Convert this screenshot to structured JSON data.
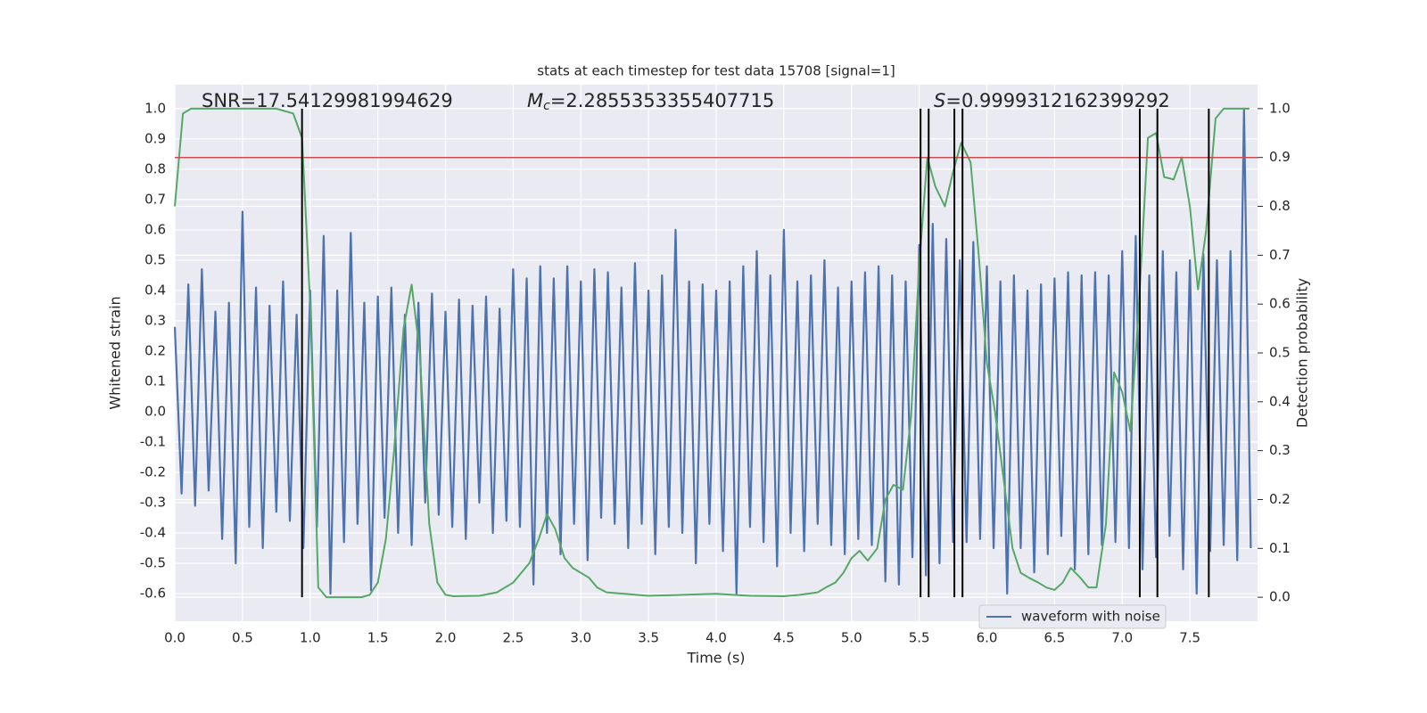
{
  "chart_data": {
    "type": "line",
    "title": "stats at each timestep for test data 15708 [signal=1]",
    "xlabel": "Time (s)",
    "ylabel": "Whitened strain",
    "y2label": "Detection probability",
    "xlim": [
      0,
      8
    ],
    "ylim": [
      -0.691,
      1.079
    ],
    "y2lim": [
      -0.049,
      1.049
    ],
    "xticks": [
      {
        "value": 0,
        "label": "0.0"
      },
      0.5,
      {
        "value": 1,
        "label": "1.0"
      },
      1.5,
      {
        "value": 2,
        "label": "2.0"
      },
      2.5,
      {
        "value": 3,
        "label": "3.0"
      },
      3.5,
      {
        "value": 4,
        "label": "4.0"
      },
      4.5,
      {
        "value": 5,
        "label": "5.0"
      },
      5.5,
      {
        "value": 6,
        "label": "6.0"
      },
      6.5,
      {
        "value": 7,
        "label": "7.0"
      },
      7.5
    ],
    "yticks": [
      -0.6,
      -0.5,
      -0.4,
      -0.3,
      -0.2,
      -0.1,
      {
        "value": 0,
        "label": "0.0"
      },
      0.1,
      0.2,
      0.3,
      0.4,
      0.5,
      0.6,
      0.7,
      0.8,
      0.9,
      {
        "value": 1,
        "label": "1.0"
      }
    ],
    "y2ticks": [
      {
        "value": 0,
        "label": "0.0"
      },
      0.1,
      0.2,
      0.3,
      0.4,
      0.5,
      0.6,
      0.7,
      0.8,
      0.9,
      {
        "value": 1,
        "label": "1.0"
      }
    ],
    "grid": true,
    "legend": "lower right",
    "annotations": [
      {
        "text": "SNR=17.54129981994629"
      },
      {
        "text": "M",
        "sub": "c",
        "rest": "=2.2855353355407715"
      },
      {
        "text": "S",
        "rest": "=0.9999312162399292"
      }
    ],
    "series": [
      {
        "name": "waveform with noise",
        "color": "#4c72b0",
        "x": [
          0,
          0.05,
          0.1,
          0.15,
          0.2,
          0.25,
          0.3,
          0.35,
          0.4,
          0.45,
          0.5,
          0.55,
          0.6,
          0.65,
          0.7,
          0.75,
          0.8,
          0.85,
          0.9,
          0.95,
          1,
          1.05,
          1.1,
          1.15,
          1.2,
          1.25,
          1.3,
          1.35,
          1.4,
          1.45,
          1.5,
          1.55,
          1.6,
          1.65,
          1.7,
          1.75,
          1.8,
          1.85,
          1.9,
          1.95,
          2,
          2.05,
          2.1,
          2.15,
          2.2,
          2.25,
          2.3,
          2.35,
          2.4,
          2.45,
          2.5,
          2.55,
          2.6,
          2.65,
          2.7,
          2.75,
          2.8,
          2.85,
          2.9,
          2.95,
          3,
          3.05,
          3.1,
          3.15,
          3.2,
          3.25,
          3.3,
          3.35,
          3.4,
          3.45,
          3.5,
          3.55,
          3.6,
          3.65,
          3.7,
          3.75,
          3.8,
          3.85,
          3.9,
          3.95,
          4,
          4.05,
          4.1,
          4.15,
          4.2,
          4.25,
          4.3,
          4.35,
          4.4,
          4.45,
          4.5,
          4.55,
          4.6,
          4.65,
          4.7,
          4.75,
          4.8,
          4.85,
          4.9,
          4.95,
          5,
          5.05,
          5.1,
          5.15,
          5.2,
          5.25,
          5.3,
          5.35,
          5.4,
          5.45,
          5.5,
          5.55,
          5.6,
          5.65,
          5.7,
          5.75,
          5.8,
          5.85,
          5.9,
          5.95,
          6,
          6.05,
          6.1,
          6.15,
          6.2,
          6.25,
          6.3,
          6.35,
          6.4,
          6.45,
          6.5,
          6.55,
          6.6,
          6.65,
          6.7,
          6.75,
          6.8,
          6.85,
          6.9,
          6.95,
          7,
          7.05,
          7.1,
          7.15,
          7.2,
          7.25,
          7.3,
          7.35,
          7.4,
          7.45,
          7.5,
          7.55,
          7.6,
          7.65,
          7.7,
          7.75,
          7.8,
          7.85,
          7.9,
          7.95
        ],
        "values": [
          0.28,
          -0.27,
          0.42,
          -0.31,
          0.47,
          -0.26,
          0.33,
          -0.42,
          0.36,
          -0.5,
          0.66,
          -0.38,
          0.41,
          -0.45,
          0.35,
          -0.33,
          0.43,
          -0.36,
          0.32,
          -0.45,
          0.4,
          -0.38,
          0.58,
          -0.6,
          0.4,
          -0.43,
          0.59,
          -0.37,
          0.36,
          -0.59,
          0.38,
          -0.35,
          0.41,
          -0.4,
          0.32,
          -0.44,
          0.36,
          -0.3,
          0.39,
          -0.34,
          0.33,
          -0.38,
          0.37,
          -0.42,
          0.35,
          -0.3,
          0.38,
          -0.4,
          0.34,
          -0.36,
          0.47,
          -0.38,
          0.44,
          -0.57,
          0.48,
          -0.4,
          0.44,
          -0.47,
          0.48,
          -0.37,
          0.43,
          -0.49,
          0.47,
          -0.35,
          0.46,
          -0.37,
          0.41,
          -0.45,
          0.49,
          -0.37,
          0.4,
          -0.47,
          0.45,
          -0.38,
          0.6,
          -0.4,
          0.43,
          -0.5,
          0.42,
          -0.37,
          0.4,
          -0.46,
          0.43,
          -0.6,
          0.48,
          -0.38,
          0.53,
          -0.43,
          0.45,
          -0.51,
          0.6,
          -0.4,
          0.43,
          -0.46,
          0.45,
          -0.37,
          0.5,
          -0.44,
          0.41,
          -0.47,
          0.43,
          -0.42,
          0.46,
          -0.44,
          0.48,
          -0.56,
          0.45,
          -0.57,
          0.43,
          -0.48,
          0.55,
          -0.54,
          0.62,
          -0.5,
          0.57,
          -0.43,
          0.5,
          -0.43,
          0.56,
          -0.42,
          0.48,
          -0.45,
          0.43,
          -0.6,
          0.45,
          -0.45,
          0.4,
          -0.53,
          0.42,
          -0.47,
          0.44,
          -0.41,
          0.46,
          -0.52,
          0.45,
          -0.47,
          0.46,
          -0.44,
          0.45,
          -0.43,
          0.53,
          -0.45,
          0.58,
          -0.52,
          0.45,
          -0.48,
          0.53,
          -0.41,
          0.46,
          -0.52,
          0.5,
          -0.6,
          0.52,
          -0.46,
          0.5,
          -0.44,
          0.53,
          -0.49,
          1.0,
          -0.45
        ]
      },
      {
        "color": "#55a868",
        "axis": "y2",
        "x": [
          0,
          0.06,
          0.12,
          0.25,
          0.5,
          0.75,
          0.875,
          0.94,
          1.0,
          1.06,
          1.12,
          1.25,
          1.38,
          1.44,
          1.5,
          1.56,
          1.62,
          1.69,
          1.75,
          1.81,
          1.88,
          1.94,
          2.0,
          2.06,
          2.25,
          2.38,
          2.5,
          2.56,
          2.62,
          2.69,
          2.75,
          2.81,
          2.88,
          2.94,
          3.06,
          3.12,
          3.19,
          3.5,
          3.75,
          4.0,
          4.25,
          4.5,
          4.62,
          4.75,
          4.81,
          4.88,
          4.94,
          5.0,
          5.06,
          5.12,
          5.19,
          5.25,
          5.31,
          5.38,
          5.44,
          5.5,
          5.56,
          5.62,
          5.69,
          5.75,
          5.81,
          5.88,
          5.94,
          6.0,
          6.06,
          6.12,
          6.19,
          6.25,
          6.31,
          6.38,
          6.44,
          6.5,
          6.56,
          6.62,
          6.69,
          6.75,
          6.81,
          6.88,
          6.94,
          7.0,
          7.06,
          7.12,
          7.19,
          7.25,
          7.31,
          7.38,
          7.44,
          7.5,
          7.56,
          7.62,
          7.69,
          7.75,
          7.94
        ],
        "values": [
          0.8,
          0.99,
          1.0,
          1.0,
          1.0,
          1.0,
          0.99,
          0.94,
          0.6,
          0.02,
          0.0,
          0.0,
          0.0,
          0.005,
          0.03,
          0.12,
          0.3,
          0.55,
          0.64,
          0.5,
          0.15,
          0.03,
          0.005,
          0.002,
          0.003,
          0.01,
          0.03,
          0.05,
          0.07,
          0.12,
          0.17,
          0.14,
          0.08,
          0.06,
          0.04,
          0.02,
          0.01,
          0.003,
          0.005,
          0.007,
          0.003,
          0.002,
          0.005,
          0.01,
          0.02,
          0.03,
          0.05,
          0.08,
          0.095,
          0.075,
          0.1,
          0.2,
          0.23,
          0.22,
          0.37,
          0.68,
          0.9,
          0.84,
          0.8,
          0.87,
          0.93,
          0.89,
          0.7,
          0.48,
          0.38,
          0.25,
          0.1,
          0.05,
          0.04,
          0.03,
          0.02,
          0.015,
          0.03,
          0.06,
          0.04,
          0.02,
          0.02,
          0.15,
          0.46,
          0.42,
          0.34,
          0.58,
          0.94,
          0.95,
          0.86,
          0.855,
          0.9,
          0.8,
          0.63,
          0.75,
          0.98,
          1.0,
          1.0
        ]
      }
    ],
    "hline": {
      "y2": 0.9,
      "color": "#c44e52"
    },
    "vlines": {
      "x": [
        0.94,
        5.51,
        5.57,
        5.76,
        5.82,
        7.13,
        7.26,
        7.64
      ],
      "y2": [
        0,
        1
      ],
      "color": "#000000"
    }
  }
}
